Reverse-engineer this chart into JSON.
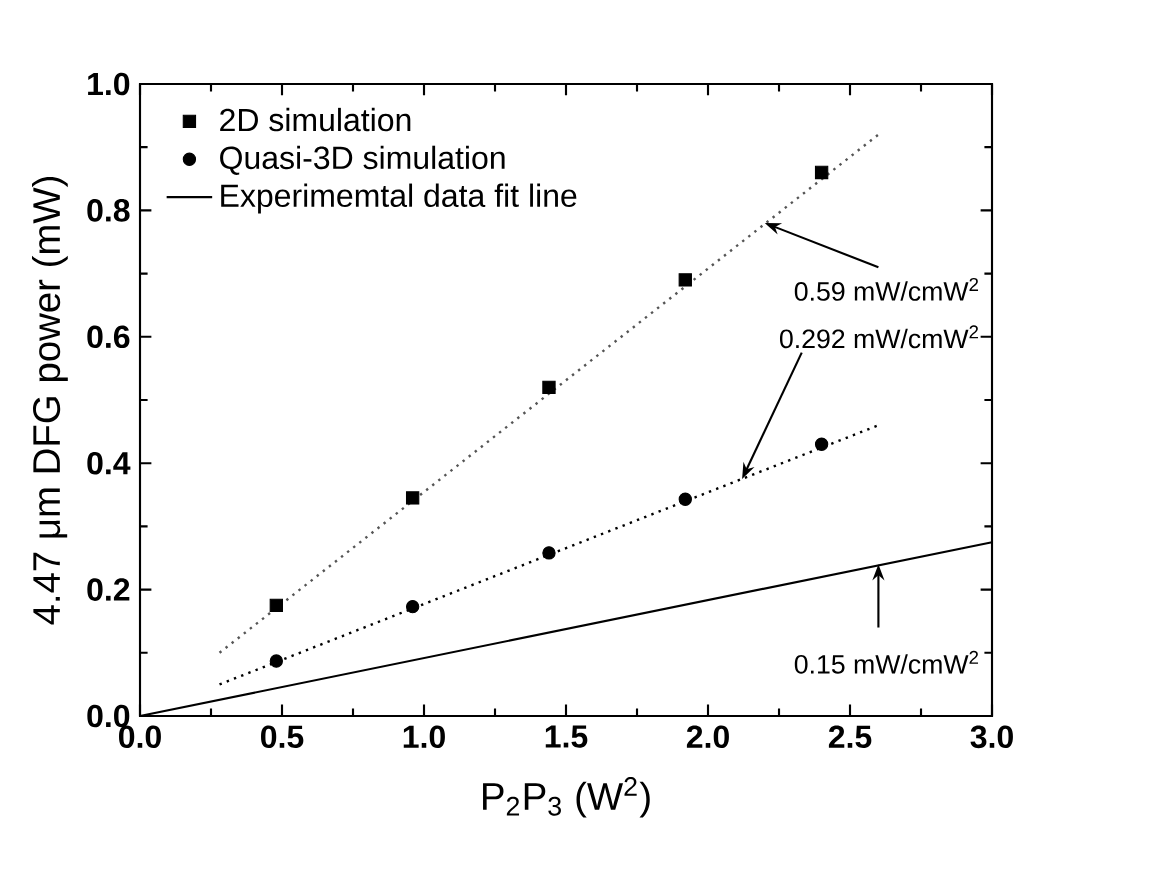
{
  "chart_data": {
    "type": "scatter",
    "xlabel": "P$_{2}$P$_{3}$ (W$^{2}$)",
    "ylabel": "4.47 μm DFG power (mW)",
    "xlim": [
      0,
      3
    ],
    "ylim": [
      0,
      1
    ],
    "xticks": [
      {
        "value": 0,
        "label": "0.0"
      },
      {
        "value": 0.5,
        "label": "0.5"
      },
      {
        "value": 1,
        "label": "1.0"
      },
      {
        "value": 1.5,
        "label": "1.5"
      },
      {
        "value": 2,
        "label": "2.0"
      },
      {
        "value": 2.5,
        "label": "2.5"
      },
      {
        "value": 3,
        "label": "3.0"
      }
    ],
    "yticks": [
      {
        "value": 0,
        "label": "0.0"
      },
      {
        "value": 0.2,
        "label": "0.2"
      },
      {
        "value": 0.4,
        "label": "0.4"
      },
      {
        "value": 0.6,
        "label": "0.6"
      },
      {
        "value": 0.8,
        "label": "0.8"
      },
      {
        "value": 1,
        "label": "1.0"
      }
    ],
    "legend": "top left",
    "grid": false,
    "series": [
      {
        "name": "2D simulation",
        "marker": "square",
        "color": "#000000",
        "x": [
          0.48,
          0.96,
          1.44,
          1.92,
          2.4
        ],
        "values": [
          0.175,
          0.345,
          0.52,
          0.69,
          0.86
        ]
      },
      {
        "name": "Quasi-3D simulation",
        "marker": "circle",
        "color": "#000000",
        "x": [
          0.48,
          0.96,
          1.44,
          1.92,
          2.4
        ],
        "values": [
          0.087,
          0.173,
          0.258,
          0.343,
          0.43
        ]
      },
      {
        "name": "Experimemtal data fit line",
        "type": "line",
        "marker": "none",
        "line_style": "solid",
        "color": "#000000",
        "x": [
          0,
          3
        ],
        "values": [
          0,
          0.275
        ]
      },
      {
        "type": "line",
        "marker": "none",
        "line_style": "dotted",
        "color": "#555555",
        "x": [
          0.28,
          2.6
        ],
        "values": [
          0.1,
          0.92
        ]
      },
      {
        "type": "line",
        "marker": "none",
        "line_style": "dotted",
        "color": "#000000",
        "x": [
          0.28,
          2.6
        ],
        "values": [
          0.05,
          0.46
        ]
      }
    ],
    "annotations": [
      {
        "text": "0.59 mW/cmW$^{2}$",
        "x": 2.2,
        "y": 0.78
      },
      {
        "text": "0.292 mW/cmW$^{2}$",
        "x": 2.12,
        "y": 0.375
      },
      {
        "text": "0.15 mW/cmW$^{2}$",
        "x": 2.6,
        "y": 0.24
      }
    ]
  }
}
